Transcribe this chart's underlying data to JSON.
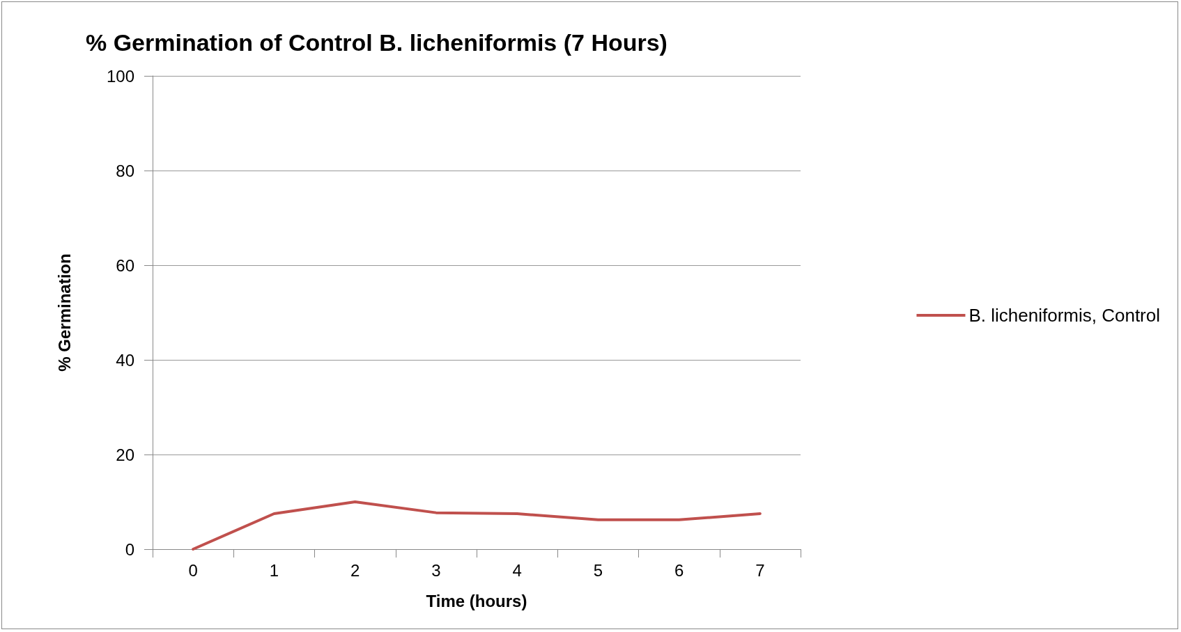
{
  "chart_data": {
    "type": "line",
    "title": "% Germination of Control B. licheniformis (7 Hours)",
    "xlabel": "Time (hours)",
    "ylabel": "% Germination",
    "categories": [
      "0",
      "1",
      "2",
      "3",
      "4",
      "5",
      "6",
      "7"
    ],
    "series": [
      {
        "name": "B. licheniformis, Control",
        "color": "#c0504d",
        "values": [
          0,
          7.5,
          10,
          7.7,
          7.5,
          6.2,
          6.2,
          7.5
        ]
      }
    ],
    "ylim": [
      0,
      100
    ],
    "yticks": [
      0,
      20,
      40,
      60,
      80,
      100
    ],
    "grid": "y",
    "legend": "right",
    "marker": "none",
    "line_style": "solid"
  }
}
